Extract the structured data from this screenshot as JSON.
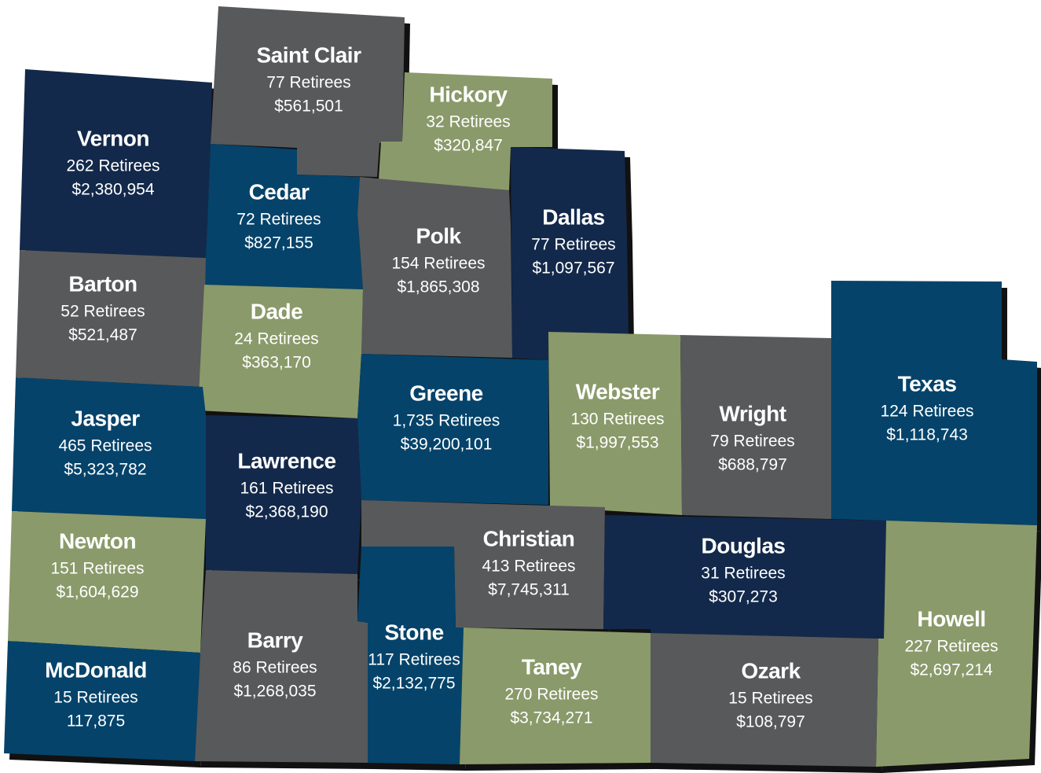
{
  "counties": [
    {
      "name": "Saint Clair",
      "retirees": "77 Retirees",
      "amount": "$561,501"
    },
    {
      "name": "Vernon",
      "retirees": "262 Retirees",
      "amount": "$2,380,954"
    },
    {
      "name": "Hickory",
      "retirees": "32 Retirees",
      "amount": "$320,847"
    },
    {
      "name": "Cedar",
      "retirees": "72 Retirees",
      "amount": "$827,155"
    },
    {
      "name": "Polk",
      "retirees": "154 Retirees",
      "amount": "$1,865,308"
    },
    {
      "name": "Dallas",
      "retirees": "77 Retirees",
      "amount": "$1,097,567"
    },
    {
      "name": "Barton",
      "retirees": "52 Retirees",
      "amount": "$521,487"
    },
    {
      "name": "Dade",
      "retirees": "24 Retirees",
      "amount": "$363,170"
    },
    {
      "name": "Jasper",
      "retirees": "465 Retirees",
      "amount": "$5,323,782"
    },
    {
      "name": "Greene",
      "retirees": "1,735 Retirees",
      "amount": "$39,200,101"
    },
    {
      "name": "Webster",
      "retirees": "130 Retirees",
      "amount": "$1,997,553"
    },
    {
      "name": "Wright",
      "retirees": "79 Retirees",
      "amount": "$688,797"
    },
    {
      "name": "Texas",
      "retirees": "124 Retirees",
      "amount": "$1,118,743"
    },
    {
      "name": "Lawrence",
      "retirees": "161 Retirees",
      "amount": "$2,368,190"
    },
    {
      "name": "Newton",
      "retirees": "151 Retirees",
      "amount": "$1,604,629"
    },
    {
      "name": "Christian",
      "retirees": "413 Retirees",
      "amount": "$7,745,311"
    },
    {
      "name": "Douglas",
      "retirees": "31 Retirees",
      "amount": "$307,273"
    },
    {
      "name": "Howell",
      "retirees": "227 Retirees",
      "amount": "$2,697,214"
    },
    {
      "name": "McDonald",
      "retirees": "15 Retirees",
      "amount": "117,875"
    },
    {
      "name": "Barry",
      "retirees": "86 Retirees",
      "amount": "$1,268,035"
    },
    {
      "name": "Stone",
      "retirees": "117 Retirees",
      "amount": "$2,132,775"
    },
    {
      "name": "Taney",
      "retirees": "270 Retirees",
      "amount": "$3,734,271"
    },
    {
      "name": "Ozark",
      "retirees": "15 Retirees",
      "amount": "$108,797"
    }
  ]
}
